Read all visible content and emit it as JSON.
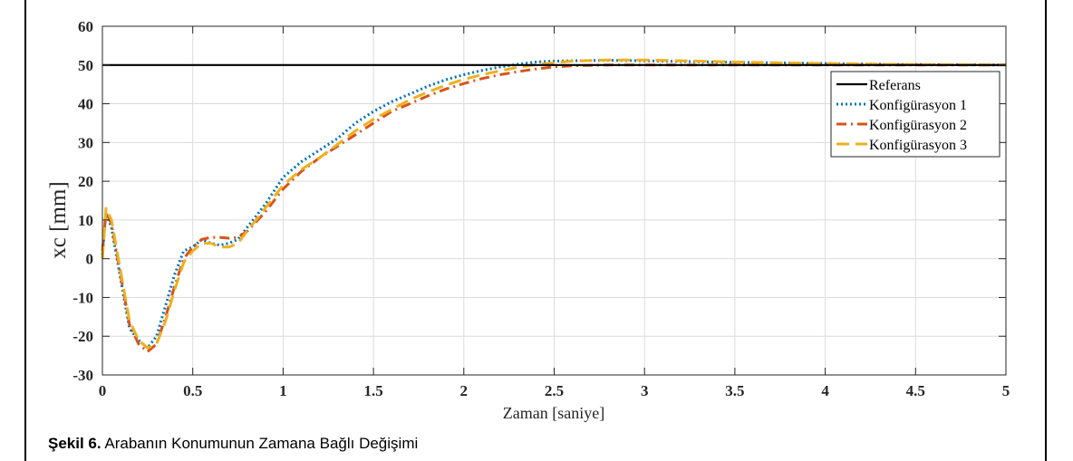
{
  "caption": {
    "label": "Şekil 6.",
    "text": " Arabanın Konumunun Zamana Bağlı Değişimi"
  },
  "chart_data": {
    "type": "line",
    "xlabel": "Zaman [saniye]",
    "ylabel": "xc [mm]",
    "xlim": [
      0,
      5
    ],
    "ylim": [
      -30,
      60
    ],
    "xticks": [
      "0",
      "0.5",
      "1",
      "1.5",
      "2",
      "2.5",
      "3",
      "3.5",
      "4",
      "4.5",
      "5"
    ],
    "yticks": [
      "-30",
      "-20",
      "-10",
      "0",
      "10",
      "20",
      "30",
      "40",
      "50",
      "60"
    ],
    "grid": true,
    "legend_position": "top-right",
    "series": [
      {
        "name": "Referans",
        "color": "#000000",
        "style": "solid",
        "x": [
          0,
          5
        ],
        "y": [
          50,
          50
        ]
      },
      {
        "name": "Konfigürasyon 1",
        "color": "#0072BD",
        "style": "dotted",
        "x": [
          0,
          0.02,
          0.05,
          0.1,
          0.15,
          0.2,
          0.25,
          0.3,
          0.35,
          0.4,
          0.45,
          0.5,
          0.55,
          0.6,
          0.65,
          0.7,
          0.75,
          0.8,
          0.9,
          1.0,
          1.1,
          1.2,
          1.3,
          1.4,
          1.5,
          1.6,
          1.7,
          1.8,
          1.9,
          2.0,
          2.1,
          2.2,
          2.3,
          2.4,
          2.5,
          2.6,
          2.8,
          3.0,
          3.2,
          3.5,
          3.8,
          4.0,
          4.3,
          4.6,
          5.0
        ],
        "y": [
          1,
          12,
          8,
          -5,
          -18,
          -21,
          -23,
          -20,
          -12,
          -4,
          2,
          3,
          5,
          4,
          3.5,
          4,
          5,
          8,
          14,
          21,
          25,
          28,
          31,
          35,
          38,
          40.5,
          42.5,
          44.5,
          46.2,
          47.5,
          48.6,
          49.5,
          50.2,
          50.8,
          51,
          51.1,
          51.2,
          51.1,
          50.9,
          50.7,
          50.5,
          50.4,
          50.2,
          50.1,
          50
        ]
      },
      {
        "name": "Konfigürasyon 2",
        "color": "#D95319",
        "style": "dashdot",
        "x": [
          0,
          0.02,
          0.05,
          0.1,
          0.15,
          0.2,
          0.25,
          0.3,
          0.35,
          0.4,
          0.45,
          0.5,
          0.55,
          0.6,
          0.65,
          0.7,
          0.75,
          0.8,
          0.9,
          1.0,
          1.1,
          1.2,
          1.3,
          1.4,
          1.5,
          1.6,
          1.7,
          1.8,
          1.9,
          2.0,
          2.1,
          2.2,
          2.3,
          2.4,
          2.5,
          2.6,
          2.8,
          3.0,
          3.2,
          3.5,
          3.8,
          4.0,
          4.3,
          4.6,
          5.0
        ],
        "y": [
          2,
          12,
          9,
          -4,
          -17,
          -22,
          -24,
          -22,
          -15,
          -7,
          0,
          3,
          5,
          5.5,
          5.5,
          5.3,
          5.5,
          7,
          12,
          18,
          22.5,
          26,
          29,
          32,
          35,
          38,
          40,
          42,
          43.8,
          45.2,
          46.5,
          47.5,
          48.3,
          49,
          49.5,
          49.8,
          50,
          50,
          50,
          50,
          50,
          50,
          50,
          50,
          50
        ]
      },
      {
        "name": "Konfigürasyon 3",
        "color": "#EDB120",
        "style": "dashed",
        "x": [
          0,
          0.02,
          0.05,
          0.1,
          0.15,
          0.2,
          0.25,
          0.3,
          0.35,
          0.4,
          0.45,
          0.5,
          0.55,
          0.6,
          0.65,
          0.7,
          0.75,
          0.8,
          0.9,
          1.0,
          1.1,
          1.2,
          1.3,
          1.4,
          1.5,
          1.6,
          1.7,
          1.8,
          1.9,
          2.0,
          2.1,
          2.2,
          2.3,
          2.4,
          2.5,
          2.6,
          2.8,
          3.0,
          3.2,
          3.5,
          3.8,
          4.0,
          4.3,
          4.6,
          5.0
        ],
        "y": [
          0,
          13,
          10,
          -3,
          -16,
          -21,
          -23,
          -22,
          -16,
          -8,
          -1,
          2,
          4,
          4,
          3,
          3,
          4,
          7,
          13,
          19,
          23,
          26,
          29.5,
          33,
          36,
          38.5,
          41,
          43,
          44.8,
          46.3,
          47.5,
          48.5,
          49.4,
          50.1,
          50.6,
          51,
          51.3,
          51.3,
          51.1,
          50.8,
          50.5,
          50.4,
          50.2,
          50.1,
          50
        ]
      }
    ]
  }
}
